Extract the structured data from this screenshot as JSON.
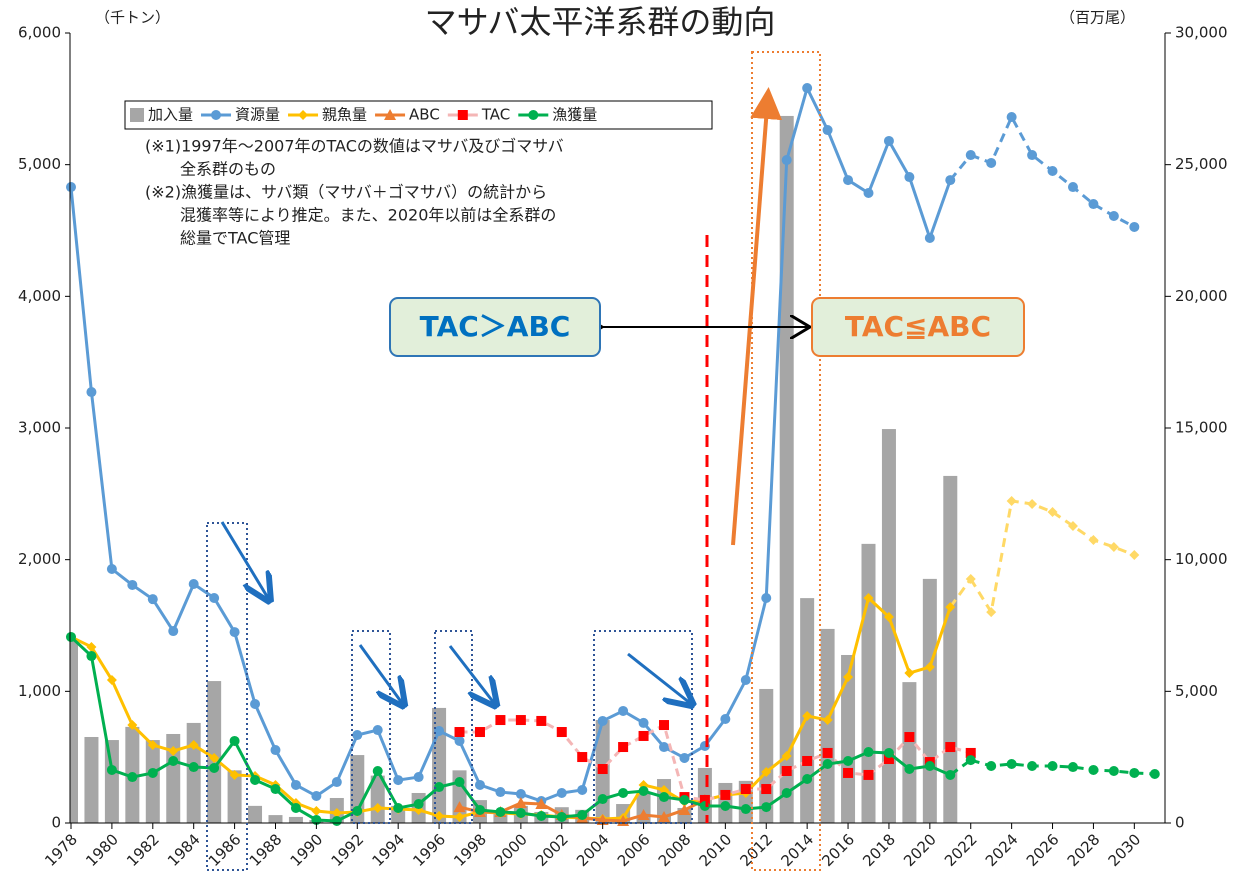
{
  "chart_data": {
    "type": "line",
    "title": "マサバ太平洋系群の動向",
    "y_unit_label": "（千トン）",
    "y2_unit_label": "（百万尾）",
    "notes": [
      "(※1)1997年～2007年のTACの数値はマサバ及びゴマサバ",
      "全系群のもの",
      "(※2)漁獲量は、サバ類（マサバ＋ゴマサバ）の統計から",
      "混獲率等により推定。また、2020年以前は全系群の",
      "総量でTAC管理"
    ],
    "annotations": [
      "TAC＞ABC",
      "TAC≦ABC"
    ],
    "x": [
      1978,
      1979,
      1980,
      1981,
      1982,
      1983,
      1984,
      1985,
      1986,
      1987,
      1988,
      1989,
      1990,
      1991,
      1992,
      1993,
      1994,
      1995,
      1996,
      1997,
      1998,
      1999,
      2000,
      2001,
      2002,
      2003,
      2004,
      2005,
      2006,
      2007,
      2008,
      2009,
      2010,
      2011,
      2012,
      2013,
      2014,
      2015,
      2016,
      2017,
      2018,
      2019,
      2020,
      2021,
      2022,
      2023,
      2024,
      2025,
      2026,
      2027,
      2028,
      2029,
      2030,
      2031
    ],
    "xlim": [
      1978,
      2031.5
    ],
    "xticks": [
      1978,
      1980,
      1982,
      1984,
      1986,
      1988,
      1990,
      1992,
      1994,
      1996,
      1998,
      2000,
      2002,
      2004,
      2006,
      2008,
      2010,
      2012,
      2014,
      2016,
      2018,
      2020,
      2022,
      2024,
      2026,
      2028,
      2030
    ],
    "ylim": [
      0,
      6000
    ],
    "yticks": [
      0,
      {
        "value": 1000,
        "label": "1,000"
      },
      {
        "value": 2000,
        "label": "2,000"
      },
      {
        "value": 3000,
        "label": "3,000"
      },
      {
        "value": 4000,
        "label": "4,000"
      },
      {
        "value": 5000,
        "label": "5,000"
      },
      {
        "value": 6000,
        "label": "6,000"
      }
    ],
    "y2lim": [
      0,
      30000
    ],
    "y2ticks": [
      0,
      {
        "value": 5000,
        "label": "5,000"
      },
      {
        "value": 10000,
        "label": "10,000"
      },
      {
        "value": 15000,
        "label": "15,000"
      },
      {
        "value": 20000,
        "label": "20,000"
      },
      {
        "value": 25000,
        "label": "25,000"
      },
      {
        "value": 30000,
        "label": "30,000"
      }
    ],
    "grid": false,
    "series": [
      {
        "name": "加入量",
        "kind": "bar",
        "axis": "y2",
        "color": "#a6a6a6",
        "values": [
          7000,
          3266,
          3150,
          3650,
          3150,
          3380,
          3800,
          5390,
          2000,
          650,
          300,
          230,
          110,
          950,
          2580,
          1800,
          650,
          1140,
          4370,
          2000,
          870,
          450,
          650,
          420,
          600,
          500,
          3910,
          720,
          1140,
          1670,
          570,
          2090,
          1520,
          1600,
          5090,
          26850,
          8540,
          7370,
          6380,
          10600,
          14960,
          5350,
          9270,
          13180,
          null,
          null,
          null,
          null,
          null,
          null,
          null,
          null,
          null,
          null
        ]
      },
      {
        "name": "資源量",
        "kind": "line",
        "marker": "circle",
        "color": "#5b9bd5",
        "dashed_from": 2021,
        "values": [
          4830,
          3273,
          1929,
          1808,
          1700,
          1458,
          1815,
          1709,
          1450,
          904,
          554,
          289,
          205,
          311,
          668,
          706,
          326,
          349,
          699,
          623,
          289,
          235,
          220,
          167,
          228,
          251,
          775,
          851,
          760,
          577,
          494,
          585,
          790,
          1086,
          1709,
          5035,
          5582,
          5263,
          4883,
          4785,
          5180,
          4906,
          4443,
          4883,
          5073,
          5013,
          5362,
          5073,
          4952,
          4830,
          4701,
          4610,
          4527,
          null
        ]
      },
      {
        "name": "親魚量",
        "kind": "line",
        "marker": "diamond",
        "color": "#ffc000",
        "projection_color": "#ffd966",
        "dashed_from": 2021,
        "values": [
          1413,
          1337,
          1086,
          744,
          592,
          547,
          592,
          494,
          365,
          357,
          289,
          152,
          91,
          76,
          84,
          114,
          106,
          99,
          53,
          46,
          84,
          76,
          68,
          61,
          46,
          38,
          30,
          38,
          289,
          251,
          160,
          175,
          213,
          228,
          387,
          509,
          813,
          782,
          1109,
          1709,
          1565,
          1139,
          1185,
          1640,
          1853,
          1602,
          2446,
          2423,
          2362,
          2256,
          2149,
          2096,
          2035,
          null
        ]
      },
      {
        "name": "ABC",
        "kind": "line",
        "marker": "triangle",
        "color": "#ed7d31",
        "values": [
          null,
          null,
          null,
          null,
          null,
          null,
          null,
          null,
          null,
          null,
          null,
          null,
          null,
          null,
          null,
          null,
          null,
          null,
          null,
          121,
          84,
          84,
          152,
          144,
          61,
          38,
          23,
          15,
          61,
          46,
          99,
          175,
          null,
          null,
          null,
          null,
          null,
          null,
          null,
          null,
          null,
          null,
          null,
          null,
          null,
          null,
          null,
          null,
          null,
          null,
          null,
          null,
          null,
          null
        ]
      },
      {
        "name": "TAC",
        "kind": "line",
        "marker": "square",
        "color": "#ff0000",
        "line_color": "#f4b6b6",
        "line_style": "dashed",
        "values": [
          null,
          null,
          null,
          null,
          null,
          null,
          null,
          null,
          null,
          null,
          null,
          null,
          null,
          null,
          null,
          null,
          null,
          null,
          null,
          691,
          691,
          782,
          782,
          775,
          691,
          501,
          410,
          577,
          661,
          744,
          197,
          175,
          213,
          258,
          258,
          395,
          471,
          532,
          380,
          365,
          486,
          653,
          463,
          577,
          532,
          null,
          null,
          null,
          null,
          null,
          null,
          null,
          null,
          null
        ]
      },
      {
        "name": "漁獲量",
        "kind": "line",
        "marker": "circle",
        "color": "#00b050",
        "dashed_from": 2021,
        "values": [
          1413,
          1268,
          403,
          349,
          380,
          471,
          425,
          418,
          623,
          327,
          258,
          114,
          23,
          15,
          91,
          395,
          114,
          144,
          273,
          311,
          99,
          84,
          76,
          53,
          46,
          61,
          182,
          228,
          243,
          197,
          175,
          129,
          129,
          106,
          121,
          228,
          334,
          448,
          471,
          539,
          532,
          410,
          433,
          365,
          478,
          433,
          448,
          433,
          433,
          425,
          403,
          395,
          380,
          372
        ]
      }
    ]
  }
}
